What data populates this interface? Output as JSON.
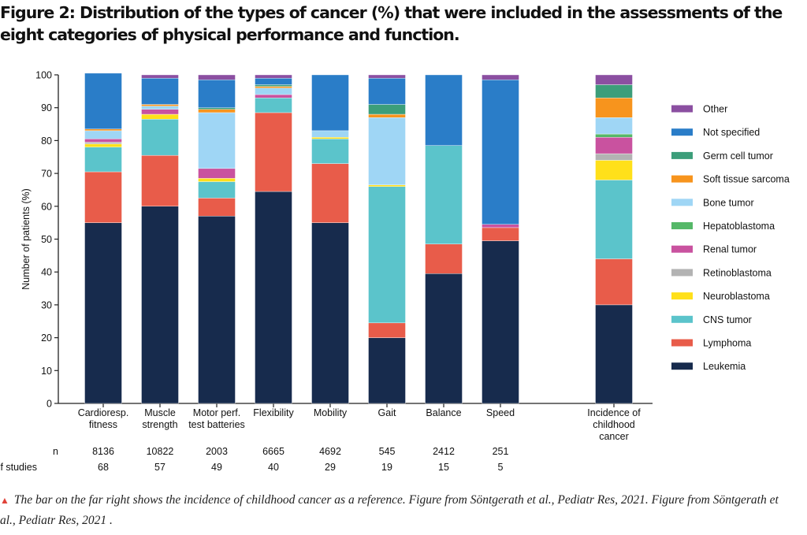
{
  "figure_title": "Figure 2: Distribution of the types of cancer (%) that were included in the assessments of the eight categories of physical performance and function.",
  "caption": "The bar on the far right shows the incidence of childhood cancer as a reference. Figure from Söntgerath et al., Pediatr Res, 2021. Figure from Söntgerath et al., Pediatr Res, 2021 .",
  "caption_marker": "▲",
  "chart_data": {
    "type": "bar",
    "stacked": true,
    "ylabel": "Number of patients (%)",
    "ylim": [
      0,
      100
    ],
    "yticks": [
      0,
      10,
      20,
      30,
      40,
      50,
      60,
      70,
      80,
      90,
      100
    ],
    "grid": false,
    "legend_position": "right",
    "categories": [
      [
        "Cardioresp.",
        "fitness"
      ],
      [
        "Muscle",
        "strength"
      ],
      [
        "Motor perf.",
        "test batteries"
      ],
      [
        "Flexibility"
      ],
      [
        "Mobility"
      ],
      [
        "Gait"
      ],
      [
        "Balance"
      ],
      [
        "Speed"
      ],
      [
        "Incidence of",
        "childhood",
        "cancer"
      ]
    ],
    "series": [
      {
        "name": "Leukemia",
        "color": "#172b4d",
        "values": [
          55,
          60,
          57,
          64.5,
          55,
          20,
          39.5,
          49.5,
          30
        ]
      },
      {
        "name": "Lymphoma",
        "color": "#e85c4a",
        "values": [
          15.5,
          15.5,
          5.5,
          24,
          18,
          4.5,
          9,
          4,
          14
        ]
      },
      {
        "name": "CNS tumor",
        "color": "#5bc4cb",
        "values": [
          7.5,
          11,
          5,
          4.5,
          7.5,
          41.5,
          30,
          0,
          24
        ]
      },
      {
        "name": "Neuroblastoma",
        "color": "#ffe01a",
        "values": [
          1,
          1.5,
          1,
          0,
          0.5,
          0.5,
          0,
          0,
          6
        ]
      },
      {
        "name": "Retinoblastoma",
        "color": "#b3b3b3",
        "values": [
          0.5,
          0,
          0,
          0,
          0,
          0,
          0,
          0,
          2
        ]
      },
      {
        "name": "Renal tumor",
        "color": "#c9529f",
        "values": [
          1,
          1.5,
          3,
          1,
          0,
          0,
          0,
          1,
          5
        ]
      },
      {
        "name": "Hepatoblastoma",
        "color": "#55b868",
        "values": [
          0,
          0,
          0,
          0,
          0,
          0,
          0,
          0,
          1
        ]
      },
      {
        "name": "Bone tumor",
        "color": "#9fd6f5",
        "values": [
          2.5,
          1,
          17,
          2,
          2,
          20.5,
          0,
          0,
          5
        ]
      },
      {
        "name": "Soft tissue sarcoma",
        "color": "#f7941d",
        "values": [
          0.5,
          0.5,
          1,
          0.5,
          0,
          1,
          0,
          0,
          6
        ]
      },
      {
        "name": "Germ cell tumor",
        "color": "#3c9e7a",
        "values": [
          0,
          0,
          0.5,
          0.5,
          0,
          3,
          0,
          0,
          4
        ]
      },
      {
        "name": "Not specified",
        "color": "#2a7dc8",
        "values": [
          17,
          8,
          8.5,
          2,
          17,
          8,
          21.5,
          44,
          0
        ]
      },
      {
        "name": "Other",
        "color": "#8b4fa1",
        "values": [
          0,
          1,
          1.5,
          1,
          0,
          1,
          0,
          1.5,
          3
        ]
      }
    ],
    "stats_rows": [
      {
        "label": "n",
        "values": [
          "8136",
          "10822",
          "2003",
          "6665",
          "4692",
          "545",
          "2412",
          "251",
          ""
        ]
      },
      {
        "label": "# of studies",
        "values": [
          "68",
          "57",
          "49",
          "40",
          "29",
          "19",
          "15",
          "5",
          ""
        ]
      }
    ]
  }
}
